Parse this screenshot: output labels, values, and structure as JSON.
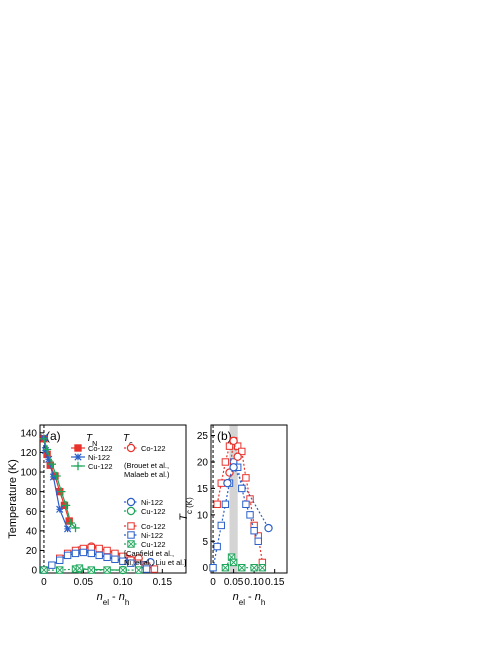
{
  "chart_data": [
    {
      "panel_label": "(a)",
      "type": "line",
      "xlabel": "n_el - n_h",
      "ylabel": "Temperature (K)",
      "xlim": [
        -0.005,
        0.18
      ],
      "ylim": [
        -3,
        148
      ],
      "xticks": [
        "0",
        "0.05",
        "0.10",
        "0.15"
      ],
      "yticks": [
        "0",
        "20",
        "40",
        "60",
        "80",
        "100",
        "120",
        "140"
      ],
      "legend": {
        "tn_header": "T_N",
        "tc_header": "T_c",
        "tn_items": [
          "Co-122",
          "Ni-122",
          "Cu-122"
        ],
        "tc_group1": [
          "Co-122",
          "Ni-122",
          "Cu-122"
        ],
        "tc_group1_ref": [
          "(Brouet et al.,",
          "Malaeb et al.)"
        ],
        "tc_group2": [
          "Co-122",
          "Ni-122",
          "Cu-122"
        ],
        "tc_group2_ref": [
          "[Canfield et al.,",
          "Ni, et al., Liu et al.]"
        ]
      },
      "series": [
        {
          "name": "TN Co-122",
          "color": "#e8322c",
          "marker": "filled-square",
          "x": [
            0.0,
            0.004,
            0.008,
            0.014,
            0.02,
            0.026,
            0.032
          ],
          "y": [
            134,
            118,
            107,
            96,
            80,
            66,
            50
          ]
        },
        {
          "name": "TN Ni-122",
          "color": "#2a5fc8",
          "marker": "star",
          "x": [
            0.0,
            0.002,
            0.006,
            0.012,
            0.02,
            0.03
          ],
          "y": [
            135,
            122,
            113,
            95,
            62,
            42
          ]
        },
        {
          "name": "TN Cu-122",
          "color": "#1ea55a",
          "marker": "plus",
          "x": [
            0.0,
            0.004,
            0.01,
            0.016,
            0.022,
            0.028,
            0.034,
            0.04
          ],
          "y": [
            134,
            123,
            108,
            96,
            80,
            66,
            48,
            43
          ]
        },
        {
          "name": "Tc Co-122 (ARPES)",
          "color": "#e8322c",
          "marker": "open-circle",
          "x": [
            0.045,
            0.06,
            0.12
          ],
          "y": [
            20,
            24,
            12
          ]
        },
        {
          "name": "Tc Ni-122 (ARPES)",
          "color": "#2a5fc8",
          "marker": "open-circle",
          "x": [
            0.05,
            0.1,
            0.135
          ],
          "y": [
            19,
            10,
            8
          ]
        },
        {
          "name": "Tc Cu-122 (ARPES)",
          "color": "#1ea55a",
          "marker": "open-circle",
          "x": [
            0.045,
            0.1
          ],
          "y": [
            1,
            0
          ]
        },
        {
          "name": "Tc Co-122",
          "color": "#e8322c",
          "marker": "open-square",
          "x": [
            0.02,
            0.03,
            0.04,
            0.05,
            0.06,
            0.07,
            0.08,
            0.09,
            0.1,
            0.11,
            0.12,
            0.13,
            0.14
          ],
          "y": [
            12,
            17,
            20,
            22,
            23,
            22,
            20,
            17,
            14,
            10,
            7,
            4,
            1
          ]
        },
        {
          "name": "Tc Ni-122",
          "color": "#2a5fc8",
          "marker": "open-square",
          "x": [
            0.0,
            0.01,
            0.02,
            0.03,
            0.04,
            0.05,
            0.06,
            0.07,
            0.08,
            0.09,
            0.1,
            0.11,
            0.12,
            0.13
          ],
          "y": [
            0,
            5,
            10,
            15,
            17,
            18,
            17,
            15,
            13,
            11,
            9,
            7,
            4,
            1
          ]
        },
        {
          "name": "Tc Cu-122",
          "color": "#1ea55a",
          "marker": "x-square",
          "x": [
            0.0,
            0.02,
            0.04,
            0.045,
            0.06,
            0.08,
            0.1,
            0.12
          ],
          "y": [
            0,
            0,
            1,
            2,
            0,
            0,
            0,
            0
          ]
        }
      ]
    },
    {
      "panel_label": "(b)",
      "type": "line",
      "xlabel": "n_el - n_h",
      "ylabel": "T_c (K)",
      "xlim": [
        -0.005,
        0.18
      ],
      "ylim": [
        -1,
        27
      ],
      "xticks": [
        "0",
        "0.05",
        "0.10",
        "0.15"
      ],
      "yticks": [
        "0",
        "5",
        "10",
        "15",
        "20",
        "25"
      ],
      "shaded_band": [
        0.04,
        0.06
      ],
      "series": [
        {
          "name": "Tc Co-122",
          "color": "#e8322c",
          "marker": "open-square",
          "x": [
            0.01,
            0.02,
            0.03,
            0.04,
            0.05,
            0.06,
            0.07,
            0.08,
            0.09,
            0.1,
            0.11,
            0.12
          ],
          "y": [
            12,
            16,
            20,
            23,
            24,
            23,
            22,
            17,
            13,
            8,
            6,
            1
          ]
        },
        {
          "name": "Tc Ni-122",
          "color": "#2a5fc8",
          "marker": "open-square",
          "x": [
            0.0,
            0.01,
            0.02,
            0.03,
            0.04,
            0.05,
            0.06,
            0.07,
            0.08,
            0.09,
            0.1,
            0.11
          ],
          "y": [
            0,
            4,
            8,
            12,
            16,
            20,
            19,
            15,
            12,
            10,
            7,
            5
          ]
        },
        {
          "name": "Tc Co-122 (ARPES)",
          "color": "#e8322c",
          "marker": "open-circle",
          "x": [
            0.04,
            0.05,
            0.06
          ],
          "y": [
            18,
            24,
            21
          ]
        },
        {
          "name": "Tc Ni-122 (ARPES)",
          "color": "#2a5fc8",
          "marker": "open-circle",
          "x": [
            0.035,
            0.05,
            0.135
          ],
          "y": [
            16,
            19,
            7.5
          ]
        },
        {
          "name": "Tc Cu-122",
          "color": "#1ea55a",
          "marker": "x-square",
          "x": [
            0.03,
            0.045,
            0.05,
            0.07,
            0.1,
            0.12
          ],
          "y": [
            0,
            2,
            1,
            0,
            0,
            0
          ]
        }
      ]
    }
  ]
}
